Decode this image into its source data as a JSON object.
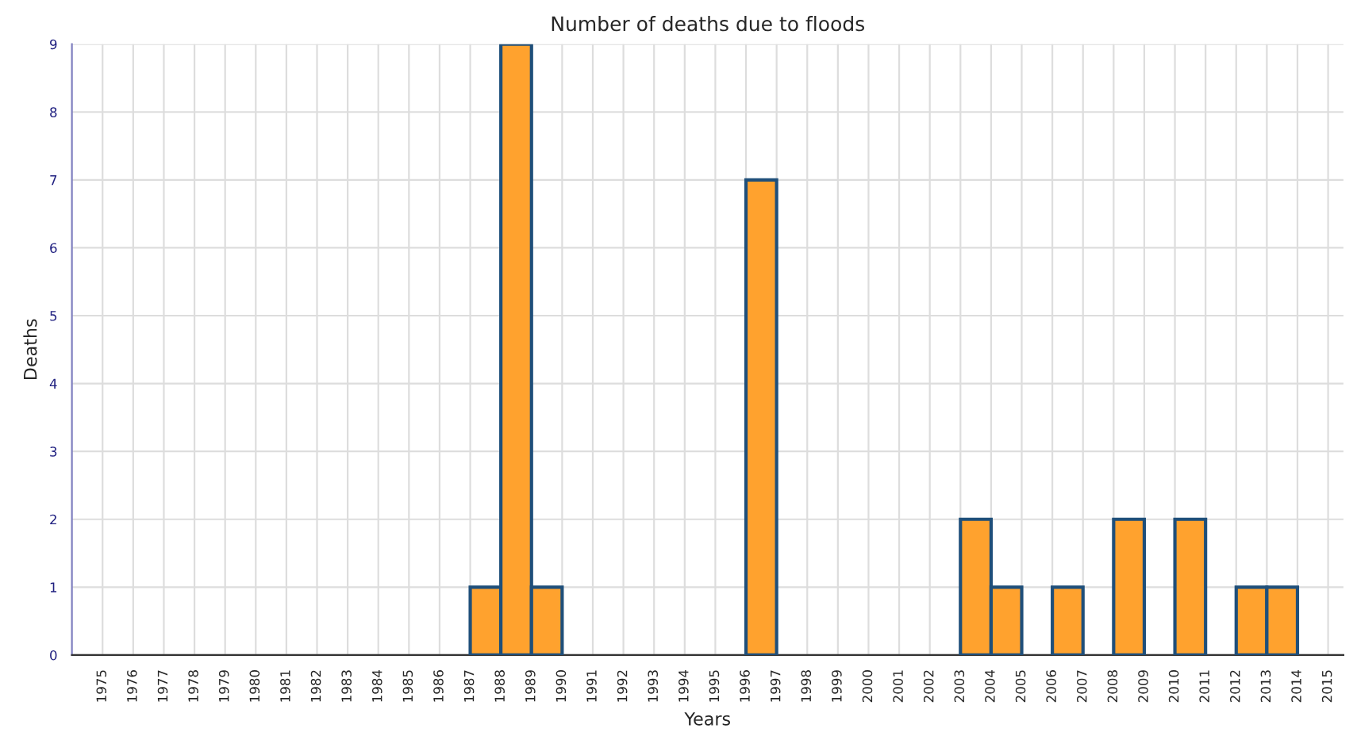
{
  "chart_data": {
    "type": "bar",
    "title": "Number of deaths due to floods",
    "xlabel": "Years",
    "ylabel": "Deaths",
    "categories": [
      "1975",
      "1976",
      "1977",
      "1978",
      "1979",
      "1980",
      "1981",
      "1982",
      "1983",
      "1984",
      "1985",
      "1986",
      "1987",
      "1988",
      "1989",
      "1990",
      "1991",
      "1992",
      "1993",
      "1994",
      "1995",
      "1996",
      "1997",
      "1998",
      "1999",
      "2000",
      "2001",
      "2002",
      "2003",
      "2004",
      "2005",
      "2006",
      "2007",
      "2008",
      "2009",
      "2010",
      "2011",
      "2012",
      "2013",
      "2014",
      "2015"
    ],
    "values": [
      0,
      0,
      0,
      0,
      0,
      0,
      0,
      0,
      0,
      0,
      0,
      0,
      1,
      9,
      1,
      0,
      0,
      0,
      0,
      0,
      0,
      7,
      0,
      0,
      0,
      0,
      0,
      0,
      2,
      1,
      0,
      1,
      0,
      2,
      0,
      2,
      0,
      1,
      1,
      0,
      0
    ],
    "color": "#ffa22e",
    "ylim": [
      0,
      9
    ],
    "yticks": [
      0,
      1,
      2,
      3,
      4,
      5,
      6,
      7,
      8,
      9
    ],
    "grid": true
  }
}
